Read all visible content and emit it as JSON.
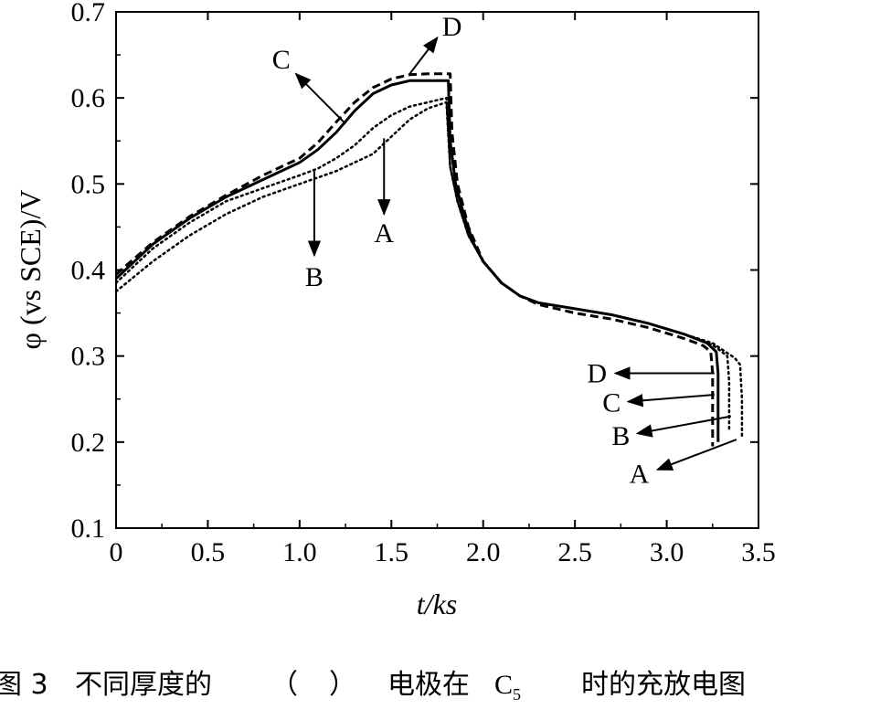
{
  "chart_data": {
    "type": "line",
    "xlabel": "t/ks",
    "ylabel": "φ (vs SCE)/V",
    "xlim": [
      0,
      3.5
    ],
    "ylim": [
      0.1,
      0.7
    ],
    "x_ticks": [
      "0",
      "0.5",
      "1.0",
      "1.5",
      "2.0",
      "2.5",
      "3.0",
      "3.5"
    ],
    "y_ticks": [
      "0.1",
      "0.2",
      "0.3",
      "0.4",
      "0.5",
      "0.6",
      "0.7"
    ],
    "grid": false,
    "series": [
      {
        "name": "A",
        "style": "dotted",
        "points": [
          [
            0,
            0.375
          ],
          [
            0.2,
            0.41
          ],
          [
            0.4,
            0.44
          ],
          [
            0.6,
            0.465
          ],
          [
            0.8,
            0.485
          ],
          [
            1.0,
            0.5
          ],
          [
            1.2,
            0.515
          ],
          [
            1.4,
            0.535
          ],
          [
            1.5,
            0.555
          ],
          [
            1.6,
            0.575
          ],
          [
            1.7,
            0.588
          ],
          [
            1.8,
            0.595
          ],
          [
            1.82,
            0.52
          ],
          [
            1.86,
            0.48
          ],
          [
            1.92,
            0.44
          ],
          [
            2.0,
            0.41
          ],
          [
            2.1,
            0.385
          ],
          [
            2.2,
            0.37
          ],
          [
            2.3,
            0.362
          ],
          [
            2.5,
            0.355
          ],
          [
            2.7,
            0.348
          ],
          [
            2.9,
            0.338
          ],
          [
            3.1,
            0.325
          ],
          [
            3.25,
            0.315
          ],
          [
            3.32,
            0.305
          ],
          [
            3.37,
            0.298
          ],
          [
            3.4,
            0.29
          ],
          [
            3.41,
            0.25
          ],
          [
            3.41,
            0.205
          ]
        ]
      },
      {
        "name": "B",
        "style": "dotted",
        "points": [
          [
            0,
            0.385
          ],
          [
            0.2,
            0.425
          ],
          [
            0.4,
            0.455
          ],
          [
            0.6,
            0.48
          ],
          [
            0.8,
            0.495
          ],
          [
            1.0,
            0.51
          ],
          [
            1.1,
            0.518
          ],
          [
            1.2,
            0.53
          ],
          [
            1.3,
            0.545
          ],
          [
            1.4,
            0.565
          ],
          [
            1.5,
            0.58
          ],
          [
            1.6,
            0.59
          ],
          [
            1.7,
            0.595
          ],
          [
            1.8,
            0.6
          ],
          [
            1.82,
            0.52
          ],
          [
            1.86,
            0.48
          ],
          [
            1.92,
            0.44
          ],
          [
            2.0,
            0.41
          ],
          [
            2.1,
            0.385
          ],
          [
            2.2,
            0.37
          ],
          [
            2.3,
            0.362
          ],
          [
            2.5,
            0.355
          ],
          [
            2.7,
            0.348
          ],
          [
            2.9,
            0.338
          ],
          [
            3.1,
            0.325
          ],
          [
            3.25,
            0.313
          ],
          [
            3.3,
            0.305
          ],
          [
            3.33,
            0.3
          ],
          [
            3.34,
            0.27
          ],
          [
            3.34,
            0.215
          ]
        ]
      },
      {
        "name": "C",
        "style": "solid",
        "points": [
          [
            0,
            0.39
          ],
          [
            0.2,
            0.43
          ],
          [
            0.4,
            0.46
          ],
          [
            0.6,
            0.485
          ],
          [
            0.8,
            0.505
          ],
          [
            1.0,
            0.525
          ],
          [
            1.1,
            0.54
          ],
          [
            1.2,
            0.56
          ],
          [
            1.3,
            0.585
          ],
          [
            1.4,
            0.605
          ],
          [
            1.5,
            0.615
          ],
          [
            1.6,
            0.62
          ],
          [
            1.7,
            0.62
          ],
          [
            1.81,
            0.62
          ],
          [
            1.82,
            0.55
          ],
          [
            1.85,
            0.5
          ],
          [
            1.9,
            0.46
          ],
          [
            1.95,
            0.43
          ],
          [
            2.0,
            0.41
          ],
          [
            2.1,
            0.385
          ],
          [
            2.2,
            0.37
          ],
          [
            2.3,
            0.362
          ],
          [
            2.5,
            0.355
          ],
          [
            2.7,
            0.348
          ],
          [
            2.9,
            0.338
          ],
          [
            3.1,
            0.325
          ],
          [
            3.22,
            0.315
          ],
          [
            3.27,
            0.305
          ],
          [
            3.28,
            0.28
          ],
          [
            3.28,
            0.2
          ]
        ]
      },
      {
        "name": "D",
        "style": "dashed",
        "points": [
          [
            0,
            0.395
          ],
          [
            0.2,
            0.432
          ],
          [
            0.4,
            0.462
          ],
          [
            0.6,
            0.487
          ],
          [
            0.8,
            0.51
          ],
          [
            1.0,
            0.53
          ],
          [
            1.1,
            0.548
          ],
          [
            1.2,
            0.572
          ],
          [
            1.3,
            0.595
          ],
          [
            1.4,
            0.612
          ],
          [
            1.5,
            0.622
          ],
          [
            1.6,
            0.627
          ],
          [
            1.7,
            0.628
          ],
          [
            1.82,
            0.628
          ],
          [
            1.83,
            0.56
          ],
          [
            1.86,
            0.5
          ],
          [
            1.92,
            0.45
          ],
          [
            2.0,
            0.41
          ],
          [
            2.1,
            0.385
          ],
          [
            2.2,
            0.37
          ],
          [
            2.3,
            0.36
          ],
          [
            2.5,
            0.35
          ],
          [
            2.7,
            0.343
          ],
          [
            2.9,
            0.333
          ],
          [
            3.1,
            0.32
          ],
          [
            3.2,
            0.312
          ],
          [
            3.24,
            0.305
          ],
          [
            3.25,
            0.28
          ],
          [
            3.25,
            0.195
          ]
        ]
      }
    ],
    "annotations": [
      {
        "text": "A",
        "label_at": [
          1.46,
          0.443
        ],
        "arrow_from": [
          1.46,
          0.553
        ],
        "arrow_to": [
          1.46,
          0.465
        ]
      },
      {
        "text": "B",
        "label_at": [
          1.08,
          0.392
        ],
        "arrow_from": [
          1.08,
          0.515
        ],
        "arrow_to": [
          1.08,
          0.417
        ]
      },
      {
        "text": "C",
        "label_at": [
          0.9,
          0.645
        ],
        "arrow_from": [
          1.25,
          0.57
        ],
        "arrow_to": [
          0.98,
          0.628
        ]
      },
      {
        "text": "D",
        "label_at": [
          1.83,
          0.683
        ],
        "arrow_from": [
          1.6,
          0.628
        ],
        "arrow_to": [
          1.75,
          0.67
        ]
      },
      {
        "text": "D",
        "label_at": [
          2.62,
          0.28
        ],
        "arrow_from": [
          3.26,
          0.28
        ],
        "arrow_to": [
          2.72,
          0.28
        ]
      },
      {
        "text": "C",
        "label_at": [
          2.7,
          0.246
        ],
        "arrow_from": [
          3.26,
          0.255
        ],
        "arrow_to": [
          2.79,
          0.247
        ]
      },
      {
        "text": "B",
        "label_at": [
          2.75,
          0.207
        ],
        "arrow_from": [
          3.35,
          0.23
        ],
        "arrow_to": [
          2.84,
          0.21
        ]
      },
      {
        "text": "A",
        "label_at": [
          2.85,
          0.163
        ],
        "arrow_from": [
          3.38,
          0.203
        ],
        "arrow_to": [
          2.95,
          0.168
        ]
      }
    ]
  },
  "caption": {
    "figure_label": "图 3",
    "text_part1": "不同厚度的",
    "paren_open": "（",
    "paren_close": "）",
    "text_part2": "电极在",
    "rate": "C",
    "rate_sub": "5",
    "text_part3": "时的充放电图"
  }
}
